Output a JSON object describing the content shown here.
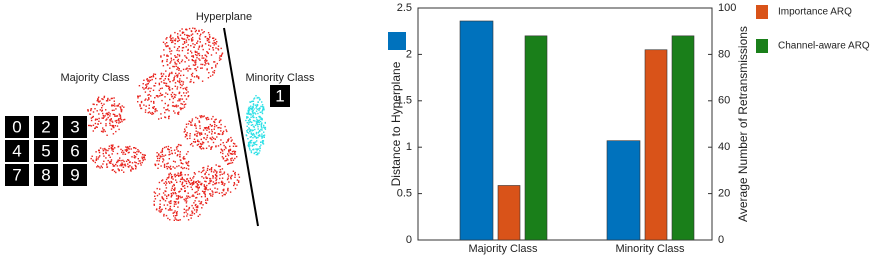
{
  "illustration": {
    "hyperplane_label": "Hyperplane",
    "majority_label": "Majority Class",
    "minority_label": "Minority Class",
    "majority_digits": [
      "0",
      "2",
      "3",
      "4",
      "5",
      "6",
      "7",
      "8",
      "9"
    ],
    "minority_digit": "1"
  },
  "chart_data": {
    "type": "bar",
    "ylabel": "Distance to Hyperplane",
    "y2label": "Average Number of Retransmissions",
    "categories": [
      "Majority Class",
      "Minority Class"
    ],
    "series": [
      {
        "color": "#0072bd",
        "values": [
          2.36,
          1.07
        ]
      },
      {
        "name": "Importance ARQ",
        "color": "#d95319",
        "axis": "y2",
        "values": [
          23.5,
          82
        ]
      },
      {
        "name": "Channel-aware ARQ",
        "color": "#1a7f1a",
        "axis": "y2",
        "values": [
          88,
          88
        ]
      }
    ],
    "ylim": [
      0,
      2.5
    ],
    "yticks": [
      0,
      0.5,
      1,
      1.5,
      2,
      2.5
    ],
    "y2lim": [
      0,
      100
    ],
    "y2ticks": [
      0,
      20,
      40,
      60,
      80,
      100
    ]
  }
}
